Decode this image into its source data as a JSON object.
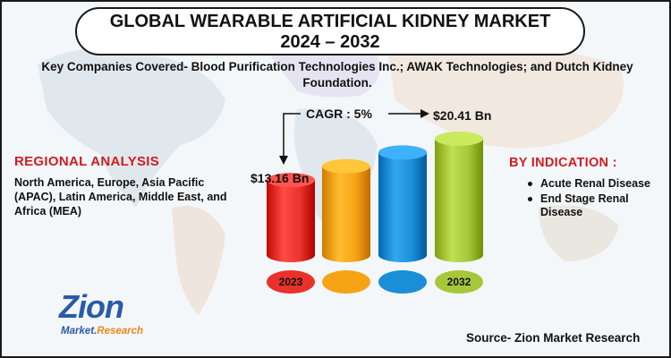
{
  "title": "GLOBAL WEARABLE ARTIFICIAL KIDNEY MARKET 2024 – 2032",
  "title_line1": "GLOBAL WEARABLE ARTIFICIAL KIDNEY MARKET",
  "title_line2": "2024 – 2032",
  "subtitle": "Key Companies Covered- Blood Purification Technologies Inc.; AWAK Technologies; and Dutch Kidney Foundation.",
  "regional": {
    "heading": "REGIONAL ANALYSIS",
    "text": "North America, Europe, Asia Pacific (APAC), Latin America, Middle East, and Africa (MEA)"
  },
  "indication": {
    "heading": "BY INDICATION  :",
    "items": [
      "Acute Renal Disease",
      "End Stage Renal Disease"
    ]
  },
  "source": "Source- Zion Market Research",
  "logo": {
    "word": "Zion",
    "sub_a": "Market.",
    "sub_b": "Research"
  },
  "colors": {
    "red": "#e8322b",
    "orange": "#f6a316",
    "blue": "#1a8fd8",
    "green": "#a7c73a",
    "accent_text": "#cc1e23"
  },
  "chart_data": {
    "type": "bar",
    "categories": [
      "2023",
      "",
      "",
      "2032"
    ],
    "values": [
      13.16,
      null,
      null,
      20.41
    ],
    "bar_colors": [
      "#e8322b",
      "#f6a316",
      "#1a8fd8",
      "#a7c73a"
    ],
    "labels": {
      "start": "$13.16 Bn",
      "end": "$20.41 Bn"
    },
    "cagr": "CAGR : 5%"
  }
}
